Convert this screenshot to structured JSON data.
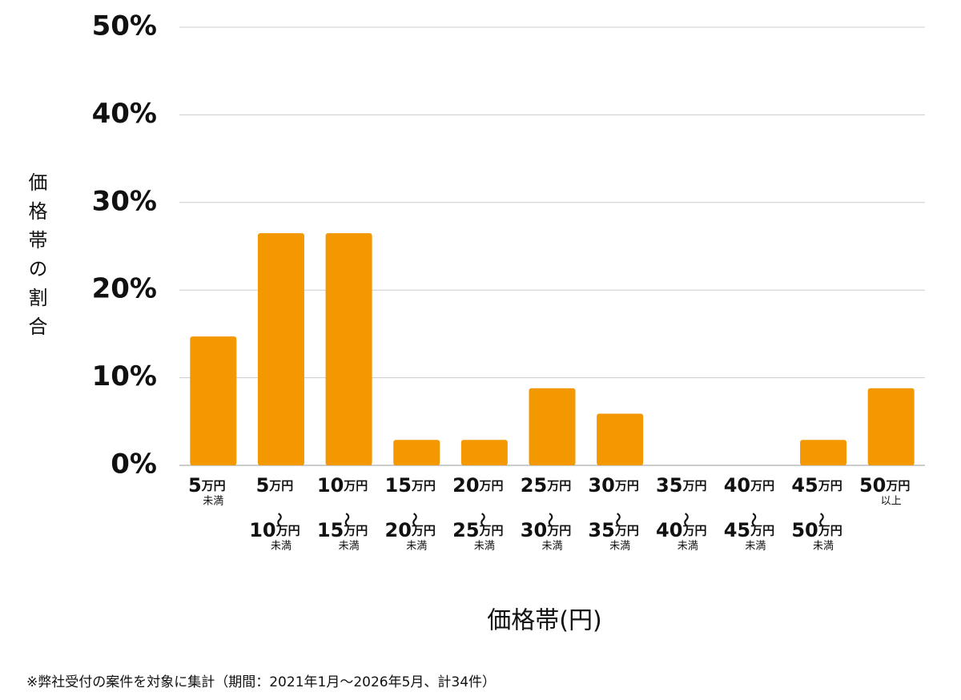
{
  "chart_data": {
    "type": "bar",
    "y_label": "価格帯の割合",
    "x_label": "価格帯(円)",
    "footnote": "※弊社受付の案件を対象に集計（期間：2021年1月～2026年5月、計34件）",
    "categories": [
      "5万円未満",
      "5万円〜10万円未満",
      "10万円〜15万円未満",
      "15万円〜20万円未満",
      "20万円〜25万円未満",
      "25万円〜30万円未満",
      "30万円〜35万円未満",
      "35万円〜40万円未満",
      "40万円〜45万円未満",
      "45万円〜50万円未満",
      "50万円以上"
    ],
    "values": [
      14.7,
      26.5,
      26.5,
      2.9,
      2.9,
      8.8,
      5.9,
      0,
      0,
      2.9,
      8.8
    ],
    "color": "#f39800",
    "ylim": [
      0,
      50
    ],
    "yticks": [
      {
        "value": 0,
        "label": "0%"
      },
      {
        "value": 10,
        "label": "10%"
      },
      {
        "value": 20,
        "label": "20%"
      },
      {
        "value": 30,
        "label": "30%"
      },
      {
        "value": 40,
        "label": "40%"
      },
      {
        "value": 50,
        "label": "50%"
      }
    ],
    "grid": true
  }
}
